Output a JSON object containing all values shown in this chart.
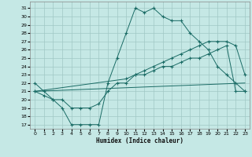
{
  "xlabel": "Humidex (Indice chaleur)",
  "bg_color": "#c5e8e5",
  "grid_color": "#a0c8c5",
  "line_color": "#1a6b65",
  "xlim": [
    -0.5,
    23.5
  ],
  "ylim": [
    16.5,
    31.8
  ],
  "xticks": [
    0,
    1,
    2,
    3,
    4,
    5,
    6,
    7,
    8,
    9,
    10,
    11,
    12,
    13,
    14,
    15,
    16,
    17,
    18,
    19,
    20,
    21,
    22,
    23
  ],
  "yticks": [
    17,
    18,
    19,
    20,
    21,
    22,
    23,
    24,
    25,
    26,
    27,
    28,
    29,
    30,
    31
  ],
  "line1_x": [
    0,
    1,
    2,
    3,
    4,
    5,
    6,
    7,
    8,
    9,
    10,
    11,
    12,
    13,
    14,
    15,
    16,
    17,
    18,
    19,
    20,
    21,
    22,
    23
  ],
  "line1_y": [
    22,
    21,
    20,
    19,
    17,
    17,
    17,
    17,
    22,
    25,
    28,
    31,
    30.5,
    31,
    30,
    29.5,
    29.5,
    28,
    27,
    26,
    24,
    23,
    22,
    21
  ],
  "line2_x": [
    0,
    1,
    2,
    3,
    4,
    5,
    6,
    7,
    8,
    9,
    10,
    11,
    12,
    13,
    14,
    15,
    16,
    17,
    18,
    19,
    20,
    21,
    22,
    23
  ],
  "line2_y": [
    21,
    20.5,
    20,
    20,
    19,
    19,
    19,
    19.5,
    21,
    22,
    22,
    23,
    23,
    23.5,
    24,
    24,
    24.5,
    25,
    25,
    25.5,
    26,
    26.5,
    21,
    21
  ],
  "line3_x": [
    0,
    10,
    11,
    12,
    13,
    14,
    15,
    16,
    17,
    18,
    19,
    20,
    21,
    22,
    23
  ],
  "line3_y": [
    21,
    22.5,
    23,
    23.5,
    24,
    24.5,
    25,
    25.5,
    26,
    26.5,
    27,
    27,
    27,
    26.5,
    23
  ],
  "line4_x": [
    0,
    23
  ],
  "line4_y": [
    21,
    22
  ]
}
